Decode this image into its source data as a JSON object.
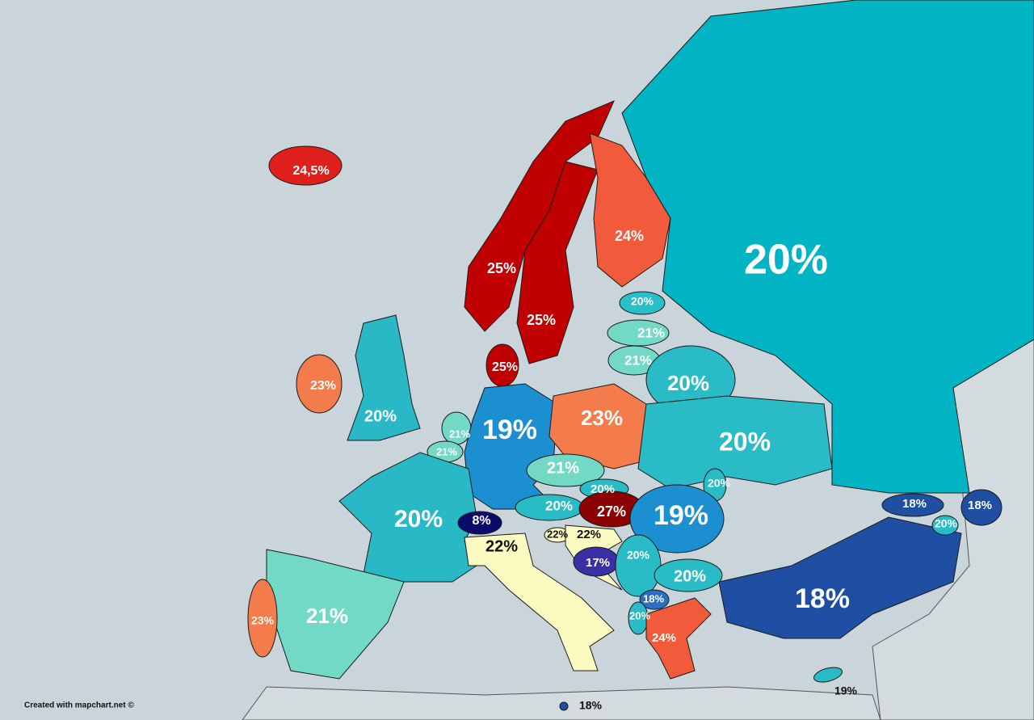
{
  "regions": [
    {
      "label": "24,5%",
      "color": "#df1f1c"
    },
    {
      "label": "25%",
      "color": "#c00000"
    },
    {
      "label": "25%",
      "color": "#c00000"
    },
    {
      "label": "25%",
      "color": "#c00000"
    },
    {
      "label": "24%",
      "color": "#f15a3a"
    },
    {
      "label": "20%",
      "color": "#00b4c4"
    },
    {
      "label": "20%",
      "color": "#29bfc8"
    },
    {
      "label": "21%",
      "color": "#72d9c6"
    },
    {
      "label": "21%",
      "color": "#72d9c6"
    },
    {
      "label": "20%",
      "color": "#29bcc6"
    },
    {
      "label": "23%",
      "color": "#f47c4c"
    },
    {
      "label": "20%",
      "color": "#29b9c6"
    },
    {
      "label": "21%",
      "color": "#72d9c6"
    },
    {
      "label": "21%",
      "color": "#72d9c6"
    },
    {
      "label": "19%",
      "color": "#1b8fcf"
    },
    {
      "label": "23%",
      "color": "#f47c4c"
    },
    {
      "label": "20%",
      "color": "#29bcc6"
    },
    {
      "label": "21%",
      "color": "#72d9c6"
    },
    {
      "label": "20%",
      "color": "#29bcc6"
    },
    {
      "label": "20%",
      "color": "#29bcc6"
    },
    {
      "label": "20%",
      "color": "#29bcc6"
    },
    {
      "label": "27%",
      "color": "#8b0000"
    },
    {
      "label": "19%",
      "color": "#1b8fcf"
    },
    {
      "label": "20%",
      "color": "#29b9c6"
    },
    {
      "label": "8%",
      "color": "#0b0b6e"
    },
    {
      "label": "22%",
      "color": "#fbfac0"
    },
    {
      "label": "22%",
      "color": "#fbfac0"
    },
    {
      "label": "22%",
      "color": "#fbfac0"
    },
    {
      "label": "17%",
      "color": "#3b2fa6"
    },
    {
      "label": "20%",
      "color": "#29bcc6"
    },
    {
      "label": "20%",
      "color": "#29bcc6"
    },
    {
      "label": "21%",
      "color": "#72d9c6"
    },
    {
      "label": "23%",
      "color": "#f47c4c"
    },
    {
      "label": "18%",
      "color": "#2a6fc2"
    },
    {
      "label": "20%",
      "color": "#29bcc6"
    },
    {
      "label": "24%",
      "color": "#f15a3a"
    },
    {
      "label": "18%",
      "color": "#1e4fa2"
    },
    {
      "label": "18%",
      "color": "#1e4fa2"
    },
    {
      "label": "20%",
      "color": "#29bcc6"
    },
    {
      "label": "18%",
      "color": "#1e4fa2"
    },
    {
      "label": "19%",
      "color": "#29bcc6"
    },
    {
      "label": "18%",
      "color": "#1e4fa2"
    }
  ],
  "footer": "Created with mapchart.net ©"
}
